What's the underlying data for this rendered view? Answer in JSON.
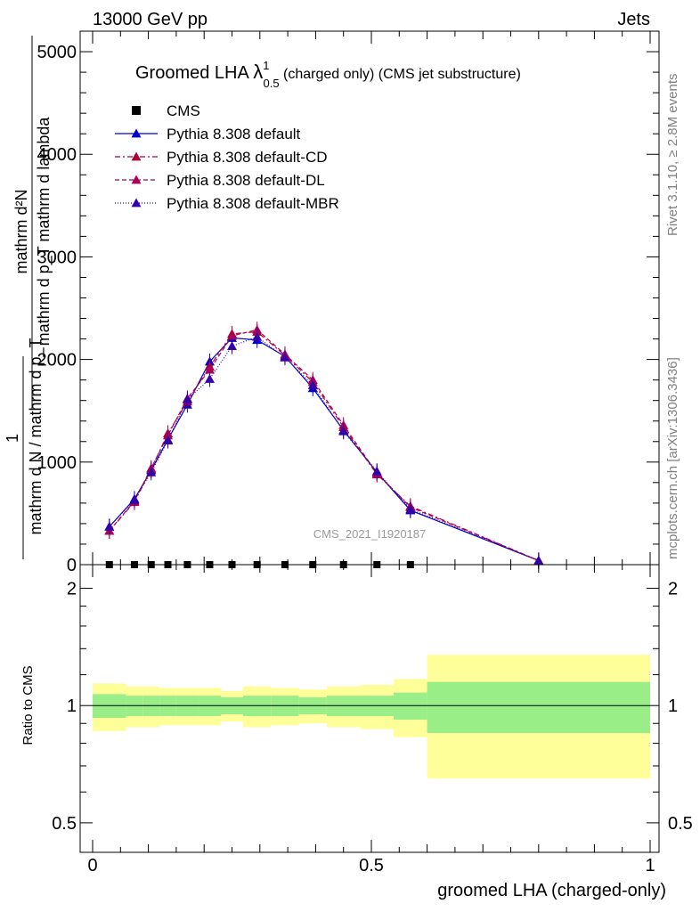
{
  "header": {
    "left": "13000 GeV pp",
    "right": "Jets"
  },
  "title": {
    "main": "Groomed LHA ",
    "lambda": "λ",
    "sup": "1",
    "sub": "0.5",
    "rest": " (charged only) (CMS jet substructure)"
  },
  "side": {
    "rivet": "Rivet 3.1.10, ≥ 2.8M events",
    "mcplots": "mcplots.cern.ch [arXiv:1306.3436]"
  },
  "watermark": "CMS_2021_I1920187",
  "ylabel_main": {
    "line1": "mathrm d²N",
    "line2": "mathrm d p_T mathrm d lambda",
    "one": "1",
    "den": "mathrm d N / mathrm d p_T"
  },
  "ylabel_ratio": "Ratio to CMS",
  "xlabel": "groomed LHA (charged-only)",
  "legend": [
    {
      "label": "CMS"
    },
    {
      "label": "Pythia 8.308 default"
    },
    {
      "label": "Pythia 8.308 default-CD"
    },
    {
      "label": "Pythia 8.308 default-DL"
    },
    {
      "label": "Pythia 8.308 default-MBR"
    }
  ],
  "chart_data": {
    "type": "line",
    "xlim": [
      0,
      1
    ],
    "ylim": [
      0,
      5200
    ],
    "ratio_ylim": [
      0.42,
      2.3
    ],
    "x_ticks": [
      "0",
      "0.5",
      "1"
    ],
    "y_ticks": [
      "0",
      "1000",
      "2000",
      "3000",
      "4000",
      "5000"
    ],
    "ratio_ticks": [
      "0.5",
      "1",
      "2"
    ],
    "bins": [
      [
        0,
        0.06
      ],
      [
        0.06,
        0.09
      ],
      [
        0.09,
        0.12
      ],
      [
        0.12,
        0.15
      ],
      [
        0.15,
        0.19
      ],
      [
        0.19,
        0.23
      ],
      [
        0.23,
        0.27
      ],
      [
        0.27,
        0.32
      ],
      [
        0.32,
        0.37
      ],
      [
        0.37,
        0.42
      ],
      [
        0.42,
        0.48
      ],
      [
        0.48,
        0.54
      ],
      [
        0.54,
        0.6
      ],
      [
        0.6,
        1.0
      ]
    ],
    "cms_values": [
      0,
      0,
      0,
      0,
      0,
      0,
      0,
      0,
      0,
      0,
      0,
      0,
      0,
      0
    ],
    "ratio_band_inner": [
      0.07,
      0.06,
      0.06,
      0.06,
      0.06,
      0.06,
      0.05,
      0.06,
      0.06,
      0.05,
      0.06,
      0.06,
      0.08,
      0.15
    ],
    "ratio_band_outer": [
      0.14,
      0.12,
      0.12,
      0.11,
      0.11,
      0.11,
      0.09,
      0.12,
      0.11,
      0.1,
      0.12,
      0.13,
      0.17,
      0.35
    ],
    "series": [
      {
        "name": "Pythia 8.308 default",
        "color": "#0000cc",
        "dash": "",
        "values": [
          370,
          640,
          920,
          1220,
          1560,
          1980,
          2210,
          2190,
          2030,
          1720,
          1310,
          900,
          530,
          40
        ]
      },
      {
        "name": "Pythia 8.308 default-CD",
        "color": "#aa0033",
        "dash": "6,3,2,3",
        "values": [
          330,
          610,
          930,
          1280,
          1590,
          1930,
          2250,
          2270,
          2040,
          1780,
          1340,
          880,
          570,
          40
        ]
      },
      {
        "name": "Pythia 8.308 default-DL",
        "color": "#aa0055",
        "dash": "5,3",
        "values": [
          330,
          620,
          940,
          1260,
          1620,
          1900,
          2230,
          2290,
          2050,
          1800,
          1360,
          890,
          560,
          40
        ]
      },
      {
        "name": "Pythia 8.308 default-MBR",
        "color": "#3300aa",
        "dash": "1,2",
        "values": [
          370,
          630,
          900,
          1210,
          1610,
          1810,
          2130,
          2220,
          2020,
          1750,
          1300,
          910,
          540,
          40
        ]
      }
    ]
  }
}
